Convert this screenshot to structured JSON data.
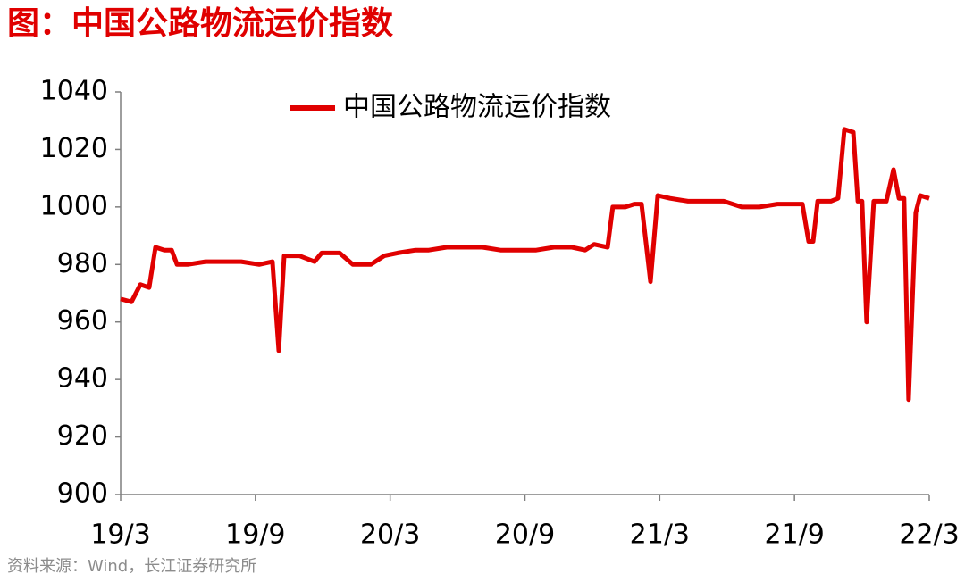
{
  "chart_data": {
    "type": "line",
    "title": "图：中国公路物流运价指数",
    "source": "资料来源：Wind，长江证券研究所",
    "legend": "top",
    "xlim": [
      0,
      36
    ],
    "xticks": [
      {
        "value": 0,
        "label": "19/3"
      },
      {
        "value": 6,
        "label": "19/9"
      },
      {
        "value": 12,
        "label": "20/3"
      },
      {
        "value": 18,
        "label": "20/9"
      },
      {
        "value": 24,
        "label": "21/3"
      },
      {
        "value": 30,
        "label": "21/9"
      },
      {
        "value": 36,
        "label": "22/3"
      }
    ],
    "ylim": [
      900,
      1040
    ],
    "yticks": [
      900,
      920,
      940,
      960,
      980,
      1000,
      1020,
      1040
    ],
    "x": [
      0,
      0.48,
      0.88,
      1.27,
      1.55,
      1.95,
      2.27,
      2.51,
      2.98,
      3.78,
      4.57,
      5.37,
      6.17,
      6.76,
      7.04,
      7.28,
      7.96,
      8.63,
      8.95,
      9.75,
      10.34,
      11.14,
      11.73,
      12.33,
      13.13,
      13.72,
      14.52,
      15.31,
      16.11,
      16.91,
      17.7,
      18.5,
      19.29,
      20.09,
      20.68,
      21.08,
      21.68,
      21.91,
      22.47,
      22.87,
      23.19,
      23.59,
      23.91,
      24.46,
      25.26,
      26.05,
      26.85,
      27.65,
      28.44,
      29.24,
      30.03,
      30.35,
      30.63,
      30.83,
      31.03,
      31.62,
      31.94,
      32.22,
      32.62,
      32.82,
      33.01,
      33.21,
      33.53,
      34.09,
      34.41,
      34.65,
      34.88,
      35.08,
      35.4,
      35.6,
      36
    ],
    "series": [
      {
        "name": "中国公路物流运价指数",
        "color": "#e00000",
        "values": [
          968,
          967,
          973,
          972,
          986,
          985,
          985,
          980,
          980,
          981,
          981,
          981,
          980,
          981,
          950,
          983,
          983,
          981,
          984,
          984,
          980,
          980,
          983,
          984,
          985,
          985,
          986,
          986,
          986,
          985,
          985,
          985,
          986,
          986,
          985,
          987,
          986,
          1000,
          1000,
          1001,
          1001,
          974,
          1004,
          1003,
          1002,
          1002,
          1002,
          1000,
          1000,
          1001,
          1001,
          1001,
          988,
          988,
          1002,
          1002,
          1003,
          1027,
          1026,
          1002,
          1002,
          960,
          1002,
          1002,
          1013,
          1003,
          1003,
          933,
          998,
          1004,
          1003
        ]
      }
    ]
  }
}
